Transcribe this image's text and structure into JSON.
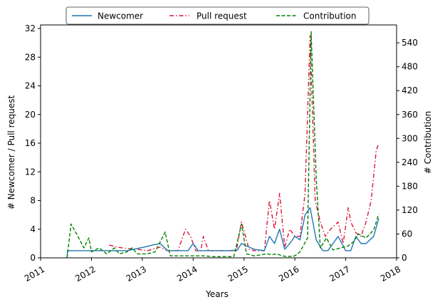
{
  "chart_data": {
    "type": "line",
    "xlabel": "Years",
    "ylabel_left": "# Newcomer / Pull request",
    "ylabel_right": "# Contribution",
    "xlim": [
      2011,
      2018
    ],
    "ylim_left": [
      0,
      32.5
    ],
    "ylim_right": [
      0,
      585
    ],
    "x_ticks": [
      "2011",
      "2012",
      "2013",
      "2014",
      "2015",
      "2016",
      "2017",
      "2018"
    ],
    "y_left_ticks": [
      0,
      4,
      8,
      12,
      16,
      20,
      24,
      28,
      32
    ],
    "y_right_ticks": [
      0,
      60,
      120,
      180,
      240,
      300,
      360,
      420,
      480,
      540
    ],
    "grid": false,
    "legend_position": "top-center",
    "series": [
      {
        "name": "Newcomer",
        "axis": "left",
        "color": "#1f77b4",
        "style": "solid",
        "x": [
          2011.52,
          2011.53,
          2011.7,
          2011.9,
          2012.1,
          2012.3,
          2012.5,
          2012.7,
          2012.9,
          2013.1,
          2013.2,
          2013.35,
          2013.5,
          2013.7,
          2013.9,
          2014.0,
          2014.1,
          2014.3,
          2014.5,
          2014.7,
          2014.87,
          2014.95,
          2015.1,
          2015.2,
          2015.4,
          2015.5,
          2015.6,
          2015.7,
          2015.8,
          2015.9,
          2016.0,
          2016.1,
          2016.2,
          2016.3,
          2016.42,
          2016.55,
          2016.65,
          2016.75,
          2016.85,
          2017.0,
          2017.1,
          2017.2,
          2017.3,
          2017.4,
          2017.55,
          2017.65
        ],
        "y": [
          0,
          1,
          1,
          1,
          1,
          1,
          1,
          1,
          1.3,
          1.6,
          1.8,
          2,
          1,
          1,
          1,
          2,
          1,
          1,
          1,
          1,
          1.1,
          2,
          1.5,
          1.2,
          1,
          3,
          2,
          4,
          1.2,
          2,
          3,
          2.5,
          6,
          7,
          2.5,
          1,
          1,
          2,
          3,
          1,
          1,
          3,
          2,
          2,
          3,
          5.5
        ]
      },
      {
        "name": "Pull request",
        "axis": "left",
        "color": "#dc143c",
        "style": "dashdot",
        "x": [
          2012.35,
          2012.5,
          2012.7,
          2012.9,
          2013.1,
          2013.2,
          2013.35,
          2013.5,
          2013.7,
          2013.85,
          2013.95,
          2014.05,
          2014.15,
          2014.2,
          2014.3,
          2014.5,
          2014.7,
          2014.85,
          2014.95,
          2015.1,
          2015.2,
          2015.4,
          2015.5,
          2015.6,
          2015.7,
          2015.8,
          2015.9,
          2016.0,
          2016.1,
          2016.2,
          2016.3,
          2016.4,
          2016.5,
          2016.6,
          2016.7,
          2016.85,
          2016.95,
          2017.05,
          2017.1,
          2017.2,
          2017.3,
          2017.4,
          2017.5,
          2017.6,
          2017.65
        ],
        "y": [
          1.8,
          1.5,
          1.3,
          1.2,
          1,
          1.2,
          1.5,
          1,
          1,
          4,
          3,
          1,
          1,
          3,
          1,
          1,
          1,
          1,
          5,
          1.2,
          1,
          1,
          8,
          4,
          9,
          1.5,
          4,
          3,
          3,
          9,
          31,
          8,
          5,
          3,
          4,
          5,
          2,
          7,
          5,
          3.5,
          3,
          5,
          8,
          15,
          16
        ]
      },
      {
        "name": "Contribution",
        "axis": "right",
        "color": "#008000",
        "style": "dashed",
        "x": [
          2011.52,
          2011.6,
          2011.75,
          2011.85,
          2011.95,
          2012.0,
          2012.15,
          2012.3,
          2012.45,
          2012.55,
          2012.7,
          2012.8,
          2012.9,
          2013.0,
          2013.1,
          2013.25,
          2013.45,
          2013.55,
          2013.7,
          2013.9,
          2014.05,
          2014.2,
          2014.4,
          2014.6,
          2014.8,
          2014.95,
          2015.05,
          2015.2,
          2015.35,
          2015.45,
          2015.55,
          2015.65,
          2015.75,
          2015.85,
          2016.0,
          2016.1,
          2016.25,
          2016.32,
          2016.42,
          2016.5,
          2016.62,
          2016.75,
          2016.9,
          2017.05,
          2017.15,
          2017.25,
          2017.4,
          2017.55,
          2017.65
        ],
        "y": [
          0,
          85,
          50,
          25,
          50,
          15,
          25,
          10,
          25,
          10,
          15,
          25,
          10,
          10,
          10,
          15,
          65,
          5,
          5,
          5,
          5,
          5,
          3,
          3,
          3,
          85,
          10,
          5,
          8,
          10,
          8,
          10,
          5,
          3,
          5,
          15,
          50,
          568,
          200,
          25,
          50,
          20,
          25,
          30,
          40,
          60,
          50,
          70,
          110
        ]
      }
    ]
  }
}
